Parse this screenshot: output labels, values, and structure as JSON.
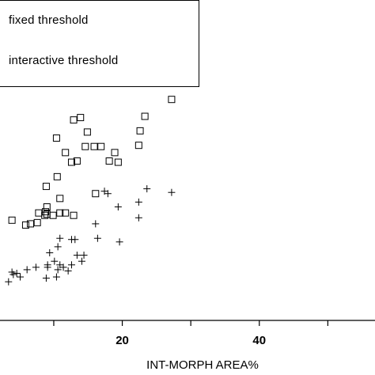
{
  "chart_data": {
    "type": "scatter",
    "xlabel": "INT-MORPH AREA%",
    "ylabel": "",
    "xlim": [
      2.5,
      57
    ],
    "ylim": [
      0,
      19
    ],
    "x_ticks": [
      10,
      20,
      30,
      40,
      50
    ],
    "x_tick_labels": [
      {
        "value": 20,
        "label": "20"
      },
      {
        "value": 40,
        "label": "40"
      }
    ],
    "legend": {
      "placement": "top-left",
      "entries": [
        "fixed threshold",
        "interactive threshold"
      ]
    },
    "series": [
      {
        "name": "fixed threshold",
        "marker": "square",
        "points": [
          [
            27.2,
            18.3
          ],
          [
            23.3,
            16.9
          ],
          [
            22.6,
            15.7
          ],
          [
            22.4,
            14.5
          ],
          [
            16.9,
            14.4
          ],
          [
            15.9,
            14.4
          ],
          [
            14.9,
            15.6
          ],
          [
            13.9,
            16.8
          ],
          [
            12.9,
            16.6
          ],
          [
            10.4,
            15.1
          ],
          [
            18.9,
            13.9
          ],
          [
            18.1,
            13.2
          ],
          [
            19.4,
            13.1
          ],
          [
            13.4,
            13.2
          ],
          [
            12.6,
            13.1
          ],
          [
            14.6,
            14.4
          ],
          [
            11.7,
            13.9
          ],
          [
            11.7,
            8.9
          ],
          [
            10.5,
            11.9
          ],
          [
            8.9,
            11.1
          ],
          [
            10.9,
            10.1
          ],
          [
            12.9,
            8.7
          ],
          [
            16.1,
            10.5
          ],
          [
            10.9,
            8.9
          ],
          [
            9.9,
            8.7
          ],
          [
            8.8,
            9.0
          ],
          [
            7.8,
            8.9
          ],
          [
            7.6,
            8.1
          ],
          [
            6.6,
            8.0
          ],
          [
            5.9,
            7.9
          ],
          [
            3.9,
            8.3
          ],
          [
            9.0,
            9.4
          ],
          [
            9.0,
            8.8
          ],
          [
            8.7,
            8.7
          ]
        ]
      },
      {
        "name": "interactive threshold",
        "marker": "plus",
        "points": [
          [
            27.2,
            10.6
          ],
          [
            23.6,
            10.9
          ],
          [
            22.4,
            9.8
          ],
          [
            22.4,
            8.5
          ],
          [
            19.4,
            9.4
          ],
          [
            17.9,
            10.5
          ],
          [
            17.4,
            10.7
          ],
          [
            16.1,
            8.0
          ],
          [
            16.4,
            6.8
          ],
          [
            19.6,
            6.5
          ],
          [
            14.4,
            5.4
          ],
          [
            13.4,
            5.4
          ],
          [
            14.1,
            4.9
          ],
          [
            12.6,
            4.6
          ],
          [
            10.9,
            4.6
          ],
          [
            10.6,
            4.2
          ],
          [
            10.1,
            4.9
          ],
          [
            9.1,
            4.6
          ],
          [
            7.4,
            4.4
          ],
          [
            6.1,
            4.2
          ],
          [
            5.1,
            3.6
          ],
          [
            4.6,
            3.9
          ],
          [
            4.1,
            3.8
          ],
          [
            3.9,
            4.0
          ],
          [
            3.4,
            3.2
          ],
          [
            12.1,
            4.1
          ],
          [
            11.4,
            4.4
          ],
          [
            10.4,
            3.6
          ],
          [
            8.9,
            3.5
          ],
          [
            13.1,
            6.7
          ],
          [
            12.6,
            6.7
          ],
          [
            10.9,
            6.8
          ],
          [
            10.6,
            6.1
          ],
          [
            9.4,
            5.6
          ],
          [
            9.1,
            4.4
          ]
        ]
      }
    ]
  }
}
